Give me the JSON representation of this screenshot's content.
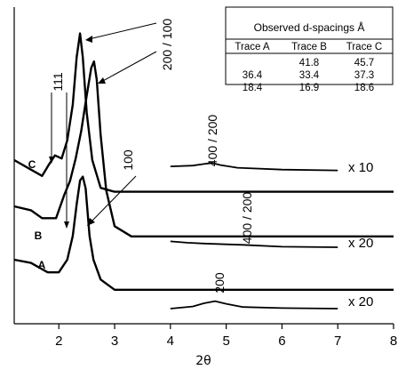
{
  "chart_data": {
    "type": "line",
    "xlabel": "2θ",
    "xlim": [
      1.2,
      8
    ],
    "x_ticks": [
      "2",
      "3",
      "4",
      "5",
      "6",
      "7",
      "8"
    ],
    "series": [
      {
        "label": "A",
        "multiplier_label": "x 20",
        "main": [
          [
            1.2,
            0.0
          ],
          [
            1.5,
            -0.4
          ],
          [
            1.8,
            -1.6
          ],
          [
            2.0,
            -1.6
          ],
          [
            2.15,
            0.0
          ],
          [
            2.25,
            3.0
          ],
          [
            2.32,
            7.0
          ],
          [
            2.38,
            10.0
          ],
          [
            2.43,
            10.5
          ],
          [
            2.48,
            9.0
          ],
          [
            2.55,
            3.0
          ],
          [
            2.62,
            0.0
          ],
          [
            2.75,
            -2.5
          ],
          [
            3.0,
            -3.8
          ],
          [
            8.0,
            -3.8
          ]
        ],
        "inset": [
          [
            4.0,
            0.0
          ],
          [
            4.4,
            0.8
          ],
          [
            4.6,
            2.0
          ],
          [
            4.8,
            2.8
          ],
          [
            5.0,
            1.8
          ],
          [
            5.3,
            0.6
          ],
          [
            6.0,
            0.2
          ],
          [
            7.0,
            0.0
          ]
        ],
        "peak_labels": [
          {
            "text": "100"
          },
          {
            "text": "200"
          }
        ]
      },
      {
        "label": "B",
        "multiplier_label": "x 20",
        "main": [
          [
            1.2,
            0.0
          ],
          [
            1.5,
            -0.5
          ],
          [
            1.7,
            -1.5
          ],
          [
            1.95,
            -1.5
          ],
          [
            2.1,
            1.5
          ],
          [
            2.2,
            3.2
          ],
          [
            2.3,
            6.0
          ],
          [
            2.4,
            9.5
          ],
          [
            2.5,
            14.0
          ],
          [
            2.58,
            17.5
          ],
          [
            2.63,
            18.3
          ],
          [
            2.68,
            16.0
          ],
          [
            2.75,
            9.0
          ],
          [
            2.85,
            2.0
          ],
          [
            3.0,
            -2.5
          ],
          [
            3.3,
            -3.8
          ],
          [
            8.0,
            -3.8
          ]
        ],
        "inset": [
          [
            4.0,
            0.2
          ],
          [
            4.3,
            -0.3
          ],
          [
            4.6,
            -0.6
          ],
          [
            5.0,
            -0.9
          ],
          [
            5.3,
            -1.1
          ],
          [
            6.0,
            -1.8
          ],
          [
            7.0,
            -2.0
          ]
        ],
        "peak_labels": [
          {
            "text": "400 / 200"
          }
        ]
      },
      {
        "label": "C",
        "multiplier_label": "x 10",
        "main": [
          [
            1.2,
            0.0
          ],
          [
            1.5,
            -1.2
          ],
          [
            1.7,
            -2.0
          ],
          [
            1.82,
            -0.6
          ],
          [
            1.93,
            0.6
          ],
          [
            2.05,
            0.2
          ],
          [
            2.15,
            2.5
          ],
          [
            2.25,
            7.0
          ],
          [
            2.32,
            13.0
          ],
          [
            2.38,
            16.0
          ],
          [
            2.43,
            13.0
          ],
          [
            2.5,
            6.0
          ],
          [
            2.6,
            0.0
          ],
          [
            2.75,
            -3.5
          ],
          [
            3.0,
            -4.0
          ],
          [
            8.0,
            -4.0
          ]
        ],
        "inset": [
          [
            4.0,
            0.3
          ],
          [
            4.4,
            0.6
          ],
          [
            4.6,
            1.2
          ],
          [
            4.75,
            1.6
          ],
          [
            4.9,
            0.8
          ],
          [
            5.2,
            -0.2
          ],
          [
            6.0,
            -0.9
          ],
          [
            7.0,
            -1.2
          ]
        ],
        "peak_labels": [
          {
            "text": "400 / 200"
          }
        ]
      }
    ],
    "annotations": [
      {
        "text": "111"
      },
      {
        "text": "200 / 100"
      },
      {
        "text": "100"
      }
    ],
    "table": {
      "title": "Observed d-spacings Å",
      "columns": [
        "Trace A",
        "Trace B",
        "Trace C"
      ],
      "rows": [
        [
          "",
          "41.8",
          "45.7"
        ],
        [
          "36.4",
          "33.4",
          "37.3"
        ],
        [
          "18.4",
          "16.9",
          "18.6"
        ]
      ]
    }
  }
}
